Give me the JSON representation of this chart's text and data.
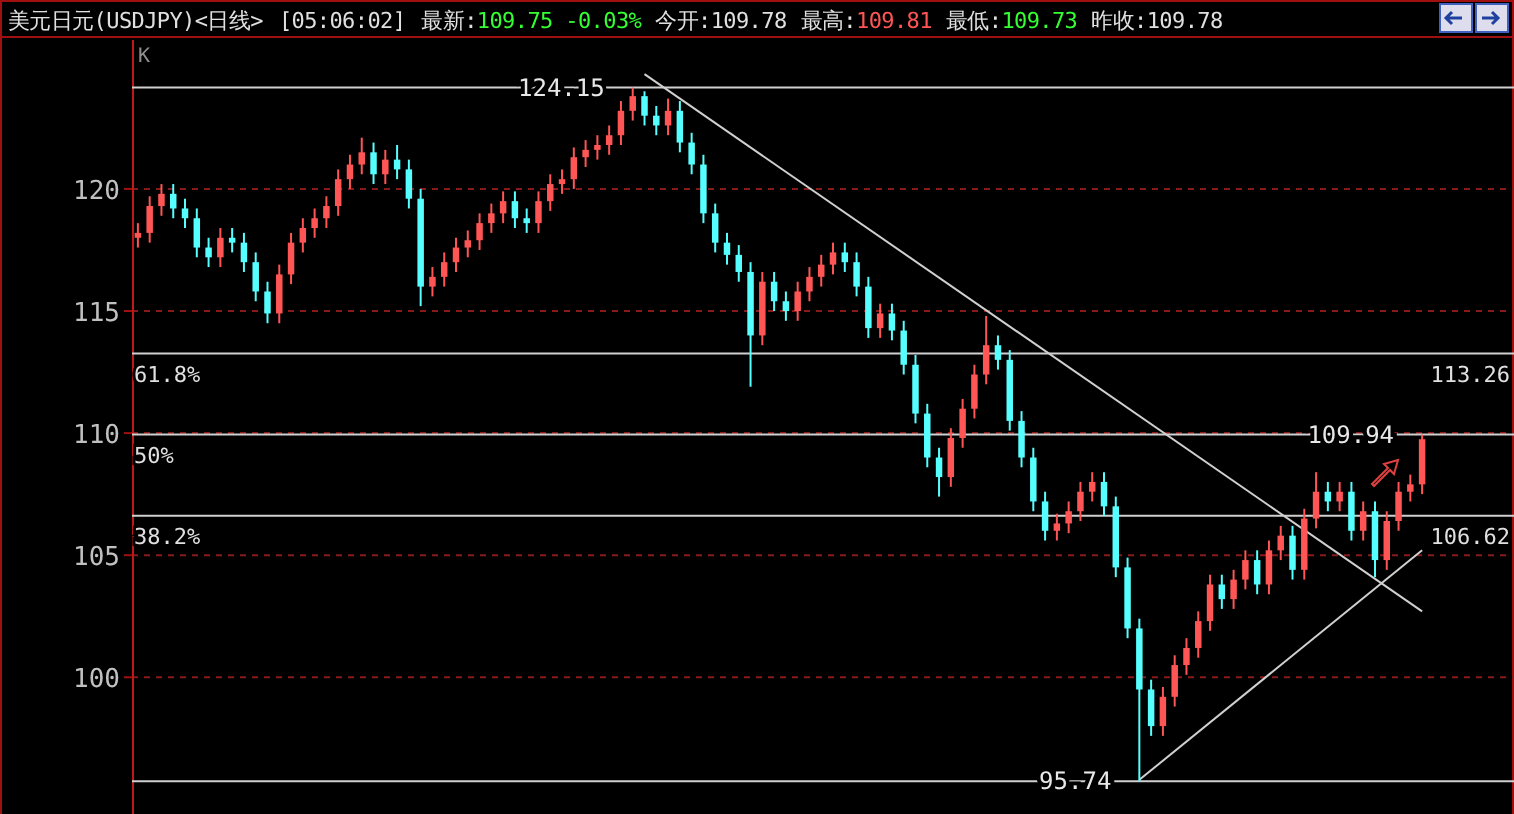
{
  "chart_data": {
    "type": "candlestick",
    "title": "美元日元(USDJPY)<日线>",
    "subtitle": "[05:06:02]",
    "colors": [
      "#ff5555",
      "#ff5555",
      "#ff5555",
      "#55ffff",
      "#55ffff",
      "#55ffff",
      "#55ffff",
      "#ff5555",
      "#55ffff",
      "#55ffff",
      "#55ffff",
      "#55ffff",
      "#ff5555",
      "#ff5555",
      "#ff5555",
      "#ff5555",
      "#ff5555",
      "#ff5555",
      "#ff5555",
      "#ff5555",
      "#55ffff",
      "#ff5555",
      "#55ffff",
      "#55ffff",
      "#55ffff",
      "#ff5555",
      "#ff5555",
      "#ff5555",
      "#ff5555",
      "#ff5555",
      "#ff5555",
      "#ff5555",
      "#55ffff",
      "#55ffff",
      "#ff5555",
      "#ff5555",
      "#ff5555",
      "#ff5555",
      "#ff5555",
      "#ff5555",
      "#ff5555",
      "#ff5555",
      "#ff5555",
      "#55ffff",
      "#55ffff",
      "#ff5555",
      "#55ffff",
      "#55ffff",
      "#55ffff",
      "#55ffff",
      "#55ffff",
      "#55ffff",
      "#55ffff",
      "#ff5555",
      "#55ffff",
      "#55ffff",
      "#ff5555",
      "#ff5555",
      "#ff5555",
      "#ff5555",
      "#55ffff",
      "#55ffff",
      "#55ffff",
      "#ff5555",
      "#55ffff",
      "#55ffff",
      "#55ffff",
      "#55ffff",
      "#55ffff",
      "#ff5555",
      "#ff5555",
      "#ff5555",
      "#ff5555",
      "#55ffff",
      "#55ffff",
      "#55ffff",
      "#55ffff",
      "#55ffff",
      "#ff5555",
      "#ff5555",
      "#ff5555",
      "#ff5555",
      "#55ffff",
      "#55ffff",
      "#55ffff",
      "#55ffff",
      "#55ffff",
      "#ff5555",
      "#ff5555",
      "#ff5555",
      "#ff5555",
      "#ff5555",
      "#55ffff",
      "#ff5555",
      "#ff5555",
      "#55ffff",
      "#ff5555",
      "#ff5555",
      "#55ffff",
      "#ff5555",
      "#ff5555",
      "#55ffff",
      "#ff5555",
      "#55ffff",
      "#ff5555",
      "#55ffff",
      "#ff5555",
      "#ff5555",
      "#ff5555",
      "#ff5555"
    ],
    "ylim": [
      94.4,
      126.1
    ],
    "yticks": [
      100,
      105,
      110,
      115,
      120
    ],
    "grid": "y",
    "tick_labels": "y",
    "categories": [
      null,
      null,
      null,
      null,
      null,
      null,
      null,
      null,
      null,
      null,
      null,
      null,
      null,
      null,
      null,
      null,
      null,
      null,
      null,
      null,
      null,
      null,
      null,
      null,
      null,
      null,
      null,
      null,
      null,
      null,
      null,
      null,
      null,
      null,
      null,
      null,
      null,
      null,
      null,
      null,
      null,
      null,
      null,
      null,
      null,
      null,
      null,
      null,
      null,
      null,
      null,
      null,
      null,
      null,
      null,
      null,
      null,
      null,
      null,
      null,
      null,
      null,
      null,
      null,
      null,
      null,
      null,
      null,
      null,
      null,
      null,
      null,
      null,
      null,
      null,
      null,
      null,
      null,
      null,
      null,
      null,
      null,
      null,
      null,
      null,
      null,
      null,
      null,
      null,
      null,
      null,
      null,
      null,
      null,
      null,
      null,
      null,
      null,
      null,
      null,
      null,
      null,
      null,
      null,
      null,
      null,
      null,
      null,
      null,
      null
    ],
    "ohlc": [
      [
        118.0,
        118.6,
        117.6,
        118.2
      ],
      [
        118.2,
        119.7,
        117.8,
        119.3
      ],
      [
        119.3,
        120.2,
        118.9,
        119.8
      ],
      [
        119.8,
        120.2,
        118.8,
        119.2
      ],
      [
        119.2,
        119.6,
        118.4,
        118.8
      ],
      [
        118.8,
        119.2,
        117.2,
        117.6
      ],
      [
        117.6,
        118.0,
        116.8,
        117.2
      ],
      [
        117.2,
        118.4,
        116.8,
        118.0
      ],
      [
        118.0,
        118.4,
        117.4,
        117.8
      ],
      [
        117.8,
        118.2,
        116.6,
        117.0
      ],
      [
        117.0,
        117.4,
        115.4,
        115.8
      ],
      [
        115.8,
        116.2,
        114.5,
        114.9
      ],
      [
        114.9,
        116.9,
        114.5,
        116.5
      ],
      [
        116.5,
        118.2,
        116.1,
        117.8
      ],
      [
        117.8,
        118.8,
        117.4,
        118.4
      ],
      [
        118.4,
        119.2,
        118.0,
        118.8
      ],
      [
        118.8,
        119.7,
        118.4,
        119.3
      ],
      [
        119.3,
        120.8,
        118.9,
        120.4
      ],
      [
        120.4,
        121.4,
        120.0,
        121.0
      ],
      [
        121.0,
        122.1,
        120.6,
        121.5
      ],
      [
        121.5,
        121.9,
        120.2,
        120.6
      ],
      [
        120.6,
        121.6,
        120.2,
        121.2
      ],
      [
        121.2,
        121.8,
        120.4,
        120.8
      ],
      [
        120.8,
        121.2,
        119.2,
        119.6
      ],
      [
        119.6,
        120.0,
        115.2,
        116.0
      ],
      [
        116.0,
        116.8,
        115.6,
        116.4
      ],
      [
        116.4,
        117.4,
        116.0,
        117.0
      ],
      [
        117.0,
        118.0,
        116.6,
        117.6
      ],
      [
        117.6,
        118.3,
        117.2,
        117.9
      ],
      [
        117.9,
        119.0,
        117.5,
        118.6
      ],
      [
        118.6,
        119.4,
        118.2,
        119.0
      ],
      [
        119.0,
        119.9,
        118.6,
        119.5
      ],
      [
        119.5,
        119.9,
        118.4,
        118.8
      ],
      [
        118.8,
        119.2,
        118.2,
        118.6
      ],
      [
        118.6,
        119.9,
        118.2,
        119.5
      ],
      [
        119.5,
        120.6,
        119.1,
        120.2
      ],
      [
        120.2,
        120.8,
        119.8,
        120.4
      ],
      [
        120.4,
        121.7,
        120.0,
        121.3
      ],
      [
        121.3,
        122.0,
        120.9,
        121.6
      ],
      [
        121.6,
        122.2,
        121.2,
        121.8
      ],
      [
        121.8,
        122.6,
        121.4,
        122.2
      ],
      [
        122.2,
        123.6,
        121.8,
        123.2
      ],
      [
        123.2,
        124.15,
        122.8,
        123.8
      ],
      [
        123.8,
        124.0,
        122.6,
        123.0
      ],
      [
        123.0,
        123.4,
        122.2,
        122.6
      ],
      [
        122.6,
        123.7,
        122.2,
        123.2
      ],
      [
        123.2,
        123.6,
        121.5,
        121.9
      ],
      [
        121.9,
        122.3,
        120.6,
        121.0
      ],
      [
        121.0,
        121.4,
        118.6,
        119.0
      ],
      [
        119.0,
        119.4,
        117.4,
        117.8
      ],
      [
        117.8,
        118.2,
        116.9,
        117.3
      ],
      [
        117.3,
        117.7,
        116.2,
        116.6
      ],
      [
        116.6,
        117.0,
        111.9,
        114.0
      ],
      [
        114.0,
        116.6,
        113.6,
        116.2
      ],
      [
        116.2,
        116.6,
        115.0,
        115.4
      ],
      [
        115.4,
        115.8,
        114.6,
        115.0
      ],
      [
        115.0,
        116.2,
        114.6,
        115.8
      ],
      [
        115.8,
        116.8,
        115.4,
        116.4
      ],
      [
        116.4,
        117.3,
        116.0,
        116.9
      ],
      [
        116.9,
        117.8,
        116.5,
        117.4
      ],
      [
        117.4,
        117.8,
        116.6,
        117.0
      ],
      [
        117.0,
        117.4,
        115.6,
        116.0
      ],
      [
        116.0,
        116.4,
        113.9,
        114.3
      ],
      [
        114.3,
        115.3,
        113.9,
        114.9
      ],
      [
        114.9,
        115.3,
        113.8,
        114.2
      ],
      [
        114.2,
        114.6,
        112.4,
        112.8
      ],
      [
        112.8,
        113.2,
        110.4,
        110.8
      ],
      [
        110.8,
        111.2,
        108.6,
        109.0
      ],
      [
        109.0,
        109.4,
        107.4,
        108.2
      ],
      [
        108.2,
        110.2,
        107.8,
        109.8
      ],
      [
        109.8,
        111.4,
        109.4,
        111.0
      ],
      [
        111.0,
        112.8,
        110.6,
        112.4
      ],
      [
        112.4,
        114.8,
        112.0,
        113.6
      ],
      [
        113.6,
        114.0,
        112.6,
        113.0
      ],
      [
        113.0,
        113.4,
        110.1,
        110.5
      ],
      [
        110.5,
        110.9,
        108.6,
        109.0
      ],
      [
        109.0,
        109.4,
        106.8,
        107.2
      ],
      [
        107.2,
        107.6,
        105.6,
        106.0
      ],
      [
        106.0,
        106.7,
        105.6,
        106.3
      ],
      [
        106.3,
        107.2,
        105.9,
        106.8
      ],
      [
        106.8,
        108.0,
        106.4,
        107.6
      ],
      [
        107.6,
        108.4,
        107.2,
        108.0
      ],
      [
        108.0,
        108.4,
        106.6,
        107.0
      ],
      [
        107.0,
        107.4,
        104.1,
        104.5
      ],
      [
        104.5,
        104.9,
        101.6,
        102.0
      ],
      [
        102.0,
        102.4,
        95.74,
        99.5
      ],
      [
        99.5,
        99.9,
        97.6,
        98.0
      ],
      [
        98.0,
        99.6,
        97.6,
        99.2
      ],
      [
        99.2,
        100.9,
        98.8,
        100.5
      ],
      [
        100.5,
        101.6,
        100.1,
        101.2
      ],
      [
        101.2,
        102.7,
        100.8,
        102.3
      ],
      [
        102.3,
        104.2,
        101.9,
        103.8
      ],
      [
        103.8,
        104.2,
        102.8,
        103.2
      ],
      [
        103.2,
        104.4,
        102.8,
        104.0
      ],
      [
        104.0,
        105.2,
        103.6,
        104.8
      ],
      [
        104.8,
        105.2,
        103.4,
        103.8
      ],
      [
        103.8,
        105.6,
        103.4,
        105.2
      ],
      [
        105.2,
        106.2,
        104.8,
        105.8
      ],
      [
        105.8,
        106.2,
        104.0,
        104.4
      ],
      [
        104.4,
        106.9,
        104.0,
        106.5
      ],
      [
        106.5,
        108.4,
        106.1,
        107.6
      ],
      [
        107.6,
        108.0,
        106.8,
        107.2
      ],
      [
        107.2,
        108.0,
        106.8,
        107.6
      ],
      [
        107.6,
        108.0,
        105.6,
        106.0
      ],
      [
        106.0,
        107.2,
        105.6,
        106.8
      ],
      [
        106.8,
        107.2,
        104.1,
        104.8
      ],
      [
        104.8,
        106.8,
        104.4,
        106.4
      ],
      [
        106.4,
        108.0,
        106.0,
        107.6
      ],
      [
        107.6,
        108.3,
        107.2,
        107.9
      ],
      [
        107.9,
        109.94,
        107.5,
        109.75
      ]
    ],
    "series": [
      {
        "type": "line",
        "color": "#d0d0d0",
        "values": [
          null,
          null,
          null,
          null,
          null,
          null,
          null,
          null,
          null,
          null,
          null,
          null,
          null,
          null,
          null,
          null,
          null,
          null,
          null,
          null,
          null,
          null,
          null,
          null,
          null,
          null,
          null,
          null,
          null,
          null,
          null,
          null,
          null,
          null,
          null,
          null,
          null,
          null,
          null,
          null,
          null,
          null,
          null,
          124.7,
          null,
          null,
          null,
          null,
          null,
          null,
          null,
          null,
          null,
          null,
          null,
          null,
          null,
          null,
          null,
          null,
          null,
          null,
          null,
          null,
          null,
          null,
          null,
          null,
          null,
          null,
          null,
          null,
          null,
          null,
          null,
          null,
          null,
          null,
          null,
          null,
          null,
          null,
          null,
          null,
          null,
          null,
          null,
          null,
          null,
          null,
          null,
          null,
          null,
          null,
          null,
          null,
          null,
          null,
          null,
          null,
          null,
          null,
          null,
          null,
          null,
          null,
          null,
          null,
          null,
          102.7
        ]
      },
      {
        "type": "line",
        "color": "#d0d0d0",
        "values": [
          null,
          null,
          null,
          null,
          null,
          null,
          null,
          null,
          null,
          null,
          null,
          null,
          null,
          null,
          null,
          null,
          null,
          null,
          null,
          null,
          null,
          null,
          null,
          null,
          null,
          null,
          null,
          null,
          null,
          null,
          null,
          null,
          null,
          null,
          null,
          null,
          null,
          null,
          null,
          null,
          null,
          null,
          null,
          null,
          null,
          null,
          null,
          null,
          null,
          null,
          null,
          null,
          null,
          null,
          null,
          null,
          null,
          null,
          null,
          null,
          null,
          null,
          null,
          null,
          null,
          null,
          null,
          null,
          null,
          null,
          null,
          null,
          null,
          null,
          null,
          null,
          null,
          null,
          null,
          null,
          null,
          null,
          null,
          null,
          null,
          95.8,
          null,
          null,
          null,
          null,
          null,
          null,
          null,
          null,
          null,
          null,
          null,
          null,
          null,
          null,
          null,
          null,
          null,
          null,
          null,
          null,
          null,
          null,
          null,
          105.2
        ]
      }
    ],
    "ref_lines": [
      {
        "axis": "y",
        "value": 124.15,
        "label": "124.15",
        "color": "#d0d0d0"
      },
      {
        "axis": "y",
        "value": 113.26,
        "label": "113.26",
        "color": "#d0d0d0"
      },
      {
        "axis": "y",
        "value": 109.94,
        "label": "109.94",
        "color": "#d0d0d0"
      },
      {
        "axis": "y",
        "value": 106.62,
        "label": "106.62",
        "color": "#d0d0d0"
      },
      {
        "axis": "y",
        "value": 95.74,
        "label": "95.74",
        "color": "#d0d0d0"
      }
    ],
    "annotations": [
      "K",
      "最新:",
      "109.75 -0.03%",
      "今开:109.78",
      "最高:",
      "109.81",
      "最低:",
      "109.73",
      "昨收:109.78",
      {
        "text": "61.8%",
        "y": 113.26
      },
      {
        "text": "50%",
        "y": 109.94
      },
      {
        "text": "38.2%",
        "y": 106.62
      }
    ]
  }
}
